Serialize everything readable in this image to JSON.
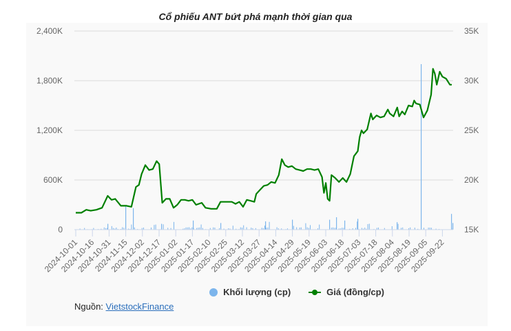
{
  "title": "Cổ phiếu ANT bứt phá mạnh thời gian qua",
  "legend": {
    "volume_label": "Khối lượng (cp)",
    "price_label": "Giá (đồng/cp)"
  },
  "source": {
    "prefix": "Nguồn: ",
    "link_text": "VietstockFinance"
  },
  "colors": {
    "price_line": "#008000",
    "volume_bar": "#7cb5ec",
    "grid": "#e6e6e6",
    "panel_bg": "#f9f9f9"
  },
  "chart_data": {
    "type": "line",
    "title": "Cổ phiếu ANT bứt phá mạnh thời gian qua",
    "xlabel": "",
    "ylabel_left": "Khối lượng (cp)",
    "ylabel_right": "Giá (đồng/cp)",
    "left_axis": {
      "ticks": [
        "0",
        "600K",
        "1,200K",
        "1,800K",
        "2,400K"
      ],
      "range": [
        0,
        2400000
      ]
    },
    "right_axis": {
      "ticks": [
        "15K",
        "20K",
        "25K",
        "30K",
        "35K"
      ],
      "range": [
        15000,
        35000
      ]
    },
    "x_ticks": [
      "2024-10-01",
      "2024-10-16",
      "2024-10-31",
      "2024-11-15",
      "2024-12-02",
      "2024-12-17",
      "2025-01-02",
      "2025-01-17",
      "2025-02-10",
      "2025-02-25",
      "2025-03-12",
      "2025-03-27",
      "2025-04-14",
      "2025-04-29",
      "2025-05-19",
      "2025-06-03",
      "2025-06-18",
      "2025-07-03",
      "2025-07-18",
      "2025-08-04",
      "2025-08-19",
      "2025-09-05",
      "2025-09-22"
    ],
    "grid": true,
    "legend_position": "bottom",
    "series": [
      {
        "name": "Giá (đồng/cp)",
        "type": "line",
        "axis": "right",
        "points": [
          [
            0.0,
            16700
          ],
          [
            0.015,
            16700
          ],
          [
            0.028,
            17000
          ],
          [
            0.04,
            16900
          ],
          [
            0.055,
            17000
          ],
          [
            0.07,
            17200
          ],
          [
            0.085,
            18400
          ],
          [
            0.095,
            18000
          ],
          [
            0.105,
            18100
          ],
          [
            0.12,
            17400
          ],
          [
            0.135,
            17400
          ],
          [
            0.148,
            17300
          ],
          [
            0.16,
            19300
          ],
          [
            0.168,
            19500
          ],
          [
            0.175,
            20600
          ],
          [
            0.185,
            21500
          ],
          [
            0.195,
            21000
          ],
          [
            0.205,
            21100
          ],
          [
            0.215,
            21900
          ],
          [
            0.222,
            21600
          ],
          [
            0.23,
            17700
          ],
          [
            0.24,
            18100
          ],
          [
            0.25,
            18100
          ],
          [
            0.26,
            17200
          ],
          [
            0.27,
            17500
          ],
          [
            0.28,
            18000
          ],
          [
            0.29,
            18000
          ],
          [
            0.3,
            17900
          ],
          [
            0.31,
            18000
          ],
          [
            0.32,
            17500
          ],
          [
            0.335,
            17700
          ],
          [
            0.345,
            17200
          ],
          [
            0.36,
            17100
          ],
          [
            0.375,
            17100
          ],
          [
            0.385,
            17800
          ],
          [
            0.4,
            17800
          ],
          [
            0.415,
            17800
          ],
          [
            0.425,
            17600
          ],
          [
            0.435,
            17800
          ],
          [
            0.445,
            17300
          ],
          [
            0.455,
            18000
          ],
          [
            0.465,
            17900
          ],
          [
            0.475,
            17800
          ],
          [
            0.48,
            18600
          ],
          [
            0.49,
            19000
          ],
          [
            0.5,
            19400
          ],
          [
            0.51,
            19500
          ],
          [
            0.52,
            19800
          ],
          [
            0.53,
            19700
          ],
          [
            0.54,
            20500
          ],
          [
            0.548,
            22100
          ],
          [
            0.556,
            21500
          ],
          [
            0.565,
            21300
          ],
          [
            0.575,
            21400
          ],
          [
            0.585,
            21100
          ],
          [
            0.595,
            21000
          ],
          [
            0.605,
            20900
          ],
          [
            0.615,
            21100
          ],
          [
            0.625,
            21100
          ],
          [
            0.635,
            21000
          ],
          [
            0.645,
            21100
          ],
          [
            0.655,
            20300
          ],
          [
            0.66,
            18700
          ],
          [
            0.665,
            19700
          ],
          [
            0.67,
            18100
          ],
          [
            0.675,
            17900
          ],
          [
            0.68,
            20500
          ],
          [
            0.69,
            20200
          ],
          [
            0.7,
            19800
          ],
          [
            0.71,
            20200
          ],
          [
            0.72,
            19800
          ],
          [
            0.73,
            20600
          ],
          [
            0.74,
            22400
          ],
          [
            0.75,
            22900
          ],
          [
            0.755,
            24300
          ],
          [
            0.76,
            25000
          ],
          [
            0.765,
            24700
          ],
          [
            0.775,
            25100
          ],
          [
            0.785,
            26700
          ],
          [
            0.79,
            26100
          ],
          [
            0.8,
            26500
          ],
          [
            0.81,
            26300
          ],
          [
            0.82,
            26400
          ],
          [
            0.83,
            27100
          ],
          [
            0.835,
            26700
          ],
          [
            0.845,
            26400
          ],
          [
            0.855,
            27300
          ],
          [
            0.86,
            26400
          ],
          [
            0.868,
            26900
          ],
          [
            0.875,
            26600
          ],
          [
            0.885,
            27500
          ],
          [
            0.895,
            27400
          ],
          [
            0.9,
            28000
          ],
          [
            0.905,
            27700
          ],
          [
            0.915,
            27600
          ],
          [
            0.925,
            26300
          ],
          [
            0.935,
            27000
          ],
          [
            0.945,
            28600
          ],
          [
            0.95,
            31200
          ],
          [
            0.955,
            30700
          ],
          [
            0.96,
            29600
          ],
          [
            0.968,
            30900
          ],
          [
            0.975,
            30400
          ],
          [
            0.985,
            30200
          ],
          [
            0.995,
            29600
          ],
          [
            1.0,
            29600
          ]
        ]
      },
      {
        "name": "Khối lượng (cp)",
        "type": "bar",
        "axis": "left"
      }
    ],
    "price_by_date_approx": {
      "2024-10-01": 16700,
      "2024-10-16": 18000,
      "2024-10-31": 19300,
      "2024-11-15": 21500,
      "2024-11-20": 17700,
      "2024-12-02": 17500,
      "2024-12-17": 17700,
      "2025-01-02": 17800,
      "2025-01-17": 17700,
      "2025-02-10": 19700,
      "2025-02-25": 20200,
      "2025-03-05": 22200,
      "2025-03-12": 21000,
      "2025-03-27": 20700,
      "2025-04-03": 18200,
      "2025-04-14": 20300,
      "2025-04-29": 25000,
      "2025-05-19": 27300,
      "2025-06-03": 27000,
      "2025-06-18": 27800,
      "2025-07-03": 31200,
      "2025-07-18": 29900,
      "2025-08-04": 31500,
      "2025-08-19": 27800,
      "2025-08-25": 25900,
      "2025-09-05": 27400,
      "2025-09-22": 28300,
      "2025-09-30": 32600
    },
    "volume_spikes_approx": {
      "2024-11-18": 280000,
      "2024-11-25": 260000,
      "2025-04-29": 120000,
      "2025-06-20": 150000,
      "2025-07-05": 200000,
      "2025-09-05": 2000000,
      "2025-09-30": 190000
    }
  }
}
